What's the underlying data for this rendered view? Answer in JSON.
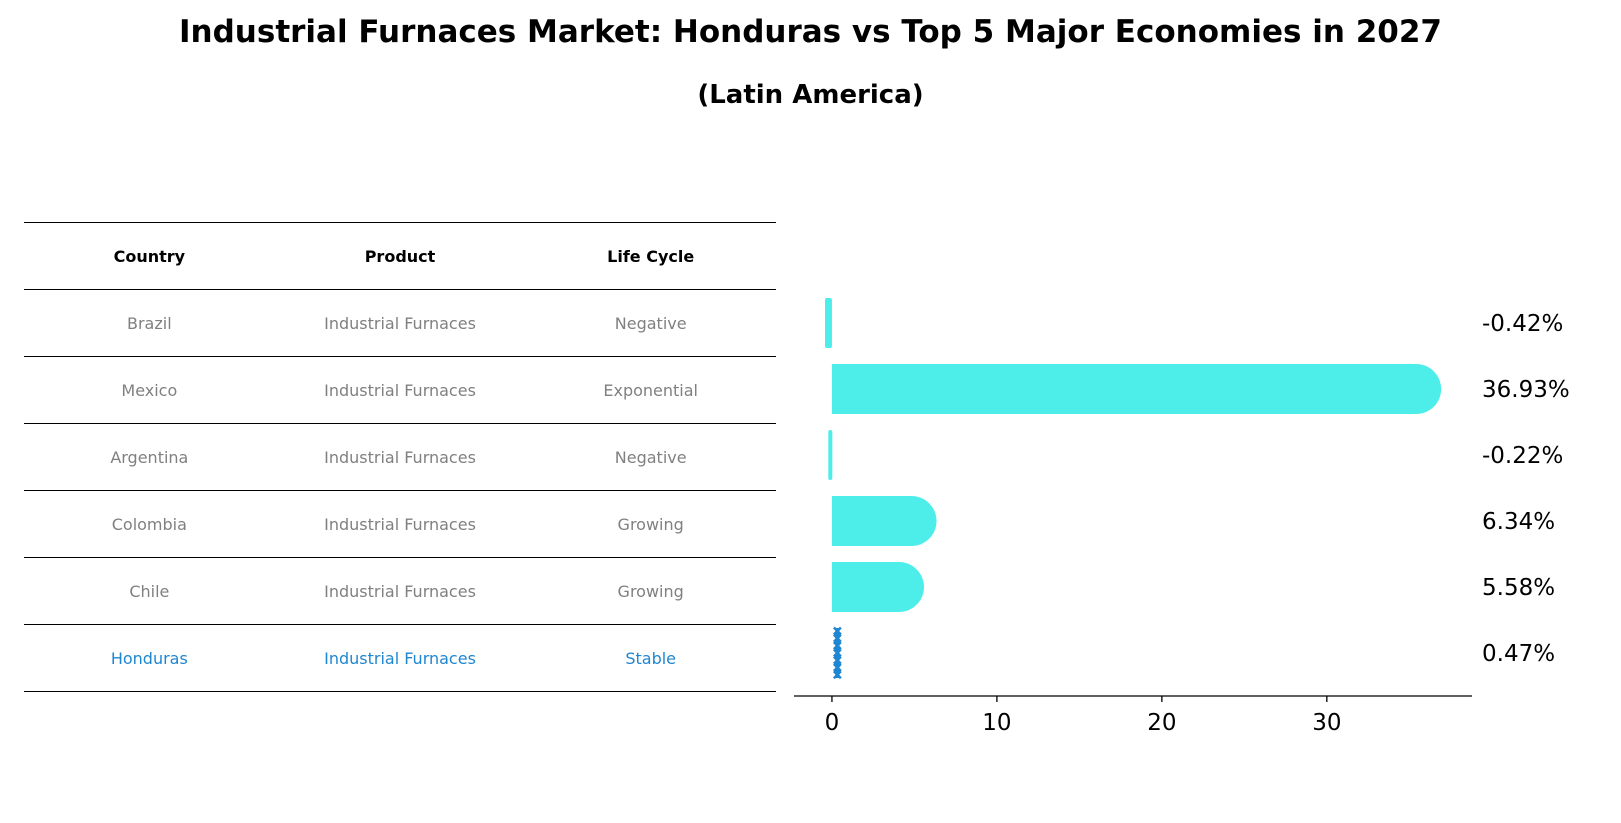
{
  "header": {
    "title": "Industrial Furnaces Market: Honduras vs Top 5 Major Economies in 2027",
    "subtitle": "(Latin America)"
  },
  "table": {
    "columns": [
      "Country",
      "Product",
      "Life Cycle"
    ],
    "rows": [
      {
        "country": "Brazil",
        "product": "Industrial Furnaces",
        "life_cycle": "Negative"
      },
      {
        "country": "Mexico",
        "product": "Industrial Furnaces",
        "life_cycle": "Exponential"
      },
      {
        "country": "Argentina",
        "product": "Industrial Furnaces",
        "life_cycle": "Negative"
      },
      {
        "country": "Colombia",
        "product": "Industrial Furnaces",
        "life_cycle": "Growing"
      },
      {
        "country": "Chile",
        "product": "Industrial Furnaces",
        "life_cycle": "Growing"
      },
      {
        "country": "Honduras",
        "product": "Industrial Furnaces",
        "life_cycle": "Stable"
      }
    ]
  },
  "colors": {
    "bar": "#4deeea",
    "highlight": "#1f86d1",
    "muted_text": "#808080"
  },
  "chart_data": {
    "type": "bar",
    "orientation": "horizontal",
    "categories": [
      "Brazil",
      "Mexico",
      "Argentina",
      "Colombia",
      "Chile",
      "Honduras"
    ],
    "values": [
      -0.42,
      36.93,
      -0.22,
      6.34,
      5.58,
      0.47
    ],
    "value_labels": [
      "-0.42%",
      "36.93%",
      "-0.22%",
      "6.34%",
      "5.58%",
      "0.47%"
    ],
    "highlight": "Honduras",
    "xticks": [
      0,
      10,
      20,
      30
    ],
    "xlim": [
      -2.3,
      38.8
    ],
    "grid": false
  }
}
